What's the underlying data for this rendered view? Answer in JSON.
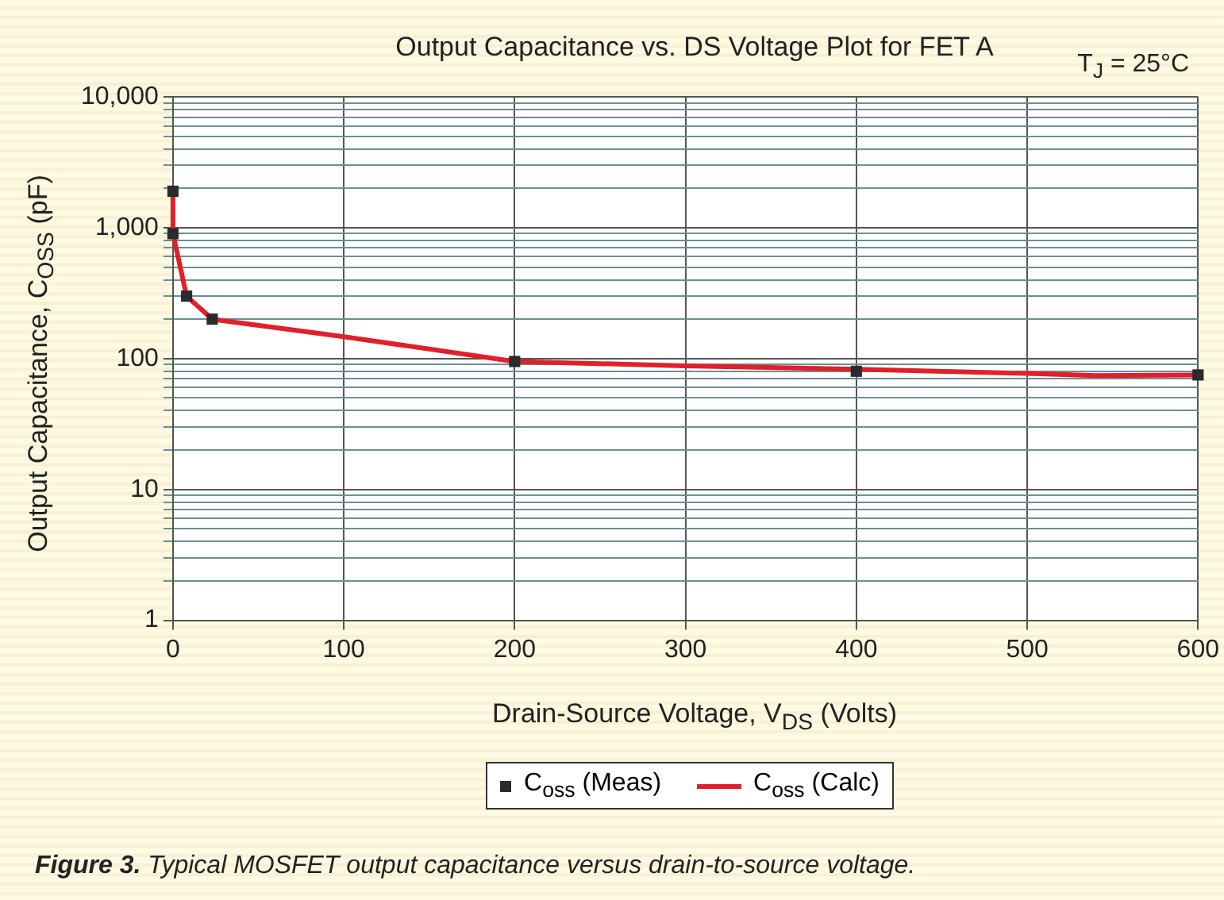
{
  "chart_data": {
    "type": "line",
    "title": "Output Capacitance vs. DS Voltage Plot for FET A",
    "xlabel": "Drain-Source Voltage, V$_{DS}$ (Volts)",
    "ylabel": "Output Capacitance, C$_{OSS}$ (pF)",
    "annotations": [
      "T$_{J}$ = 25°C",
      "Figure 3.",
      "Typical MOSFET output capacitance versus drain-to-source voltage."
    ],
    "series": [
      {
        "name": "C$_{oss}$ (Meas)",
        "type": "scatter",
        "color": "#2b2b2b",
        "marker": "square",
        "x": [
          0,
          0,
          8,
          23,
          200,
          400,
          600
        ],
        "values": [
          1900,
          900,
          300,
          200,
          95,
          80,
          75
        ]
      },
      {
        "name": "C$_{oss}$ (Calc)",
        "type": "line",
        "color": "#e0202a",
        "marker": "none",
        "line_style": "solid",
        "x": [
          0,
          0,
          8,
          23,
          100,
          200,
          300,
          400,
          500,
          540,
          600
        ],
        "values": [
          1900,
          900,
          300,
          200,
          147,
          95,
          88,
          83,
          77,
          74,
          75
        ]
      }
    ],
    "xlim": [
      0,
      600
    ],
    "xticks": [
      0,
      100,
      200,
      300,
      400,
      500,
      600
    ],
    "ylim": [
      1,
      10000
    ],
    "log": "y",
    "yticks": [
      1,
      {
        "value": 2,
        "label": null
      },
      {
        "value": 3,
        "label": null
      },
      {
        "value": 4,
        "label": null
      },
      {
        "value": 5,
        "label": null
      },
      {
        "value": 6,
        "label": null
      },
      {
        "value": 7,
        "label": null
      },
      {
        "value": 8,
        "label": null
      },
      {
        "value": 9,
        "label": null
      },
      10,
      {
        "value": 20,
        "label": null
      },
      {
        "value": 30,
        "label": null
      },
      {
        "value": 40,
        "label": null
      },
      {
        "value": 50,
        "label": null
      },
      {
        "value": 60,
        "label": null
      },
      {
        "value": 70,
        "label": null
      },
      {
        "value": 80,
        "label": null
      },
      {
        "value": 90,
        "label": null
      },
      100,
      {
        "value": 200,
        "label": null
      },
      {
        "value": 300,
        "label": null
      },
      {
        "value": 400,
        "label": null
      },
      {
        "value": 500,
        "label": null
      },
      {
        "value": 600,
        "label": null
      },
      {
        "value": 700,
        "label": null
      },
      {
        "value": 800,
        "label": null
      },
      {
        "value": 900,
        "label": null
      },
      {
        "value": 1000,
        "label": "1,000"
      },
      {
        "value": 2000,
        "label": null
      },
      {
        "value": 3000,
        "label": null
      },
      {
        "value": 4000,
        "label": null
      },
      {
        "value": 5000,
        "label": null
      },
      {
        "value": 6000,
        "label": null
      },
      {
        "value": 7000,
        "label": null
      },
      {
        "value": 8000,
        "label": null
      },
      {
        "value": 9000,
        "label": null
      },
      {
        "value": 10000,
        "label": "10,000"
      }
    ],
    "grid": true,
    "legend": "bottom"
  }
}
